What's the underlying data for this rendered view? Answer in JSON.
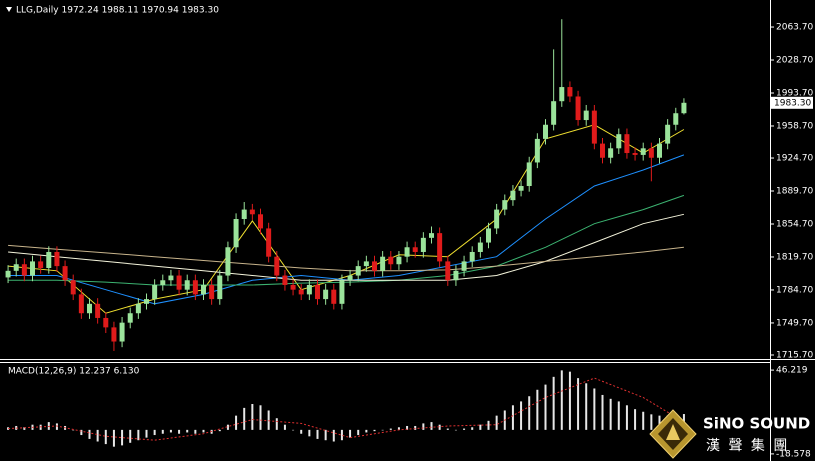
{
  "chart_data": [
    {
      "type": "candlestick",
      "title": "LLG,Daily  1972.24 1988.11 1970.94 1983.30",
      "up_color": "#9be39b",
      "down_color": "#e01b1b",
      "open": [
        1798,
        1805,
        1812,
        1800,
        1815,
        1808,
        1825,
        1810,
        1795,
        1780,
        1760,
        1770,
        1755,
        1745,
        1730,
        1750,
        1760,
        1770,
        1775,
        1790,
        1795,
        1800,
        1785,
        1795,
        1780,
        1790,
        1775,
        1800,
        1830,
        1860,
        1870,
        1865,
        1850,
        1820,
        1800,
        1790,
        1785,
        1780,
        1790,
        1775,
        1785,
        1770,
        1795,
        1800,
        1810,
        1815,
        1805,
        1820,
        1812,
        1820,
        1830,
        1825,
        1840,
        1845,
        1815,
        1795,
        1805,
        1815,
        1825,
        1835,
        1850,
        1870,
        1880,
        1890,
        1895,
        1920,
        1945,
        1960,
        1985,
        2000,
        1990,
        1965,
        1975,
        1940,
        1925,
        1935,
        1950,
        1930,
        1928,
        1935,
        1925,
        1940,
        1960,
        1972.24
      ],
      "high": [
        1811,
        1818,
        1818,
        1821,
        1821,
        1831,
        1831,
        1816,
        1801,
        1786,
        1776,
        1776,
        1761,
        1751,
        1756,
        1766,
        1776,
        1781,
        1796,
        1801,
        1806,
        1806,
        1801,
        1801,
        1796,
        1796,
        1806,
        1836,
        1866,
        1878,
        1876,
        1871,
        1856,
        1826,
        1806,
        1796,
        1791,
        1796,
        1796,
        1791,
        1791,
        1801,
        1806,
        1816,
        1821,
        1821,
        1826,
        1826,
        1826,
        1836,
        1836,
        1846,
        1852,
        1851,
        1821,
        1811,
        1821,
        1831,
        1841,
        1856,
        1876,
        1886,
        1896,
        1901,
        1926,
        1951,
        1966,
        2040,
        2072,
        2006,
        1996,
        1981,
        1981,
        1946,
        1941,
        1956,
        1956,
        1936,
        1941,
        1941,
        1946,
        1966,
        1978,
        1988.11
      ],
      "low": [
        1792,
        1799,
        1794,
        1794,
        1802,
        1802,
        1804,
        1789,
        1774,
        1754,
        1754,
        1749,
        1739,
        1720,
        1724,
        1744,
        1754,
        1764,
        1769,
        1784,
        1789,
        1779,
        1779,
        1774,
        1774,
        1769,
        1769,
        1794,
        1824,
        1854,
        1859,
        1844,
        1814,
        1794,
        1784,
        1779,
        1774,
        1774,
        1769,
        1769,
        1764,
        1764,
        1789,
        1794,
        1804,
        1799,
        1799,
        1806,
        1806,
        1814,
        1819,
        1819,
        1834,
        1809,
        1789,
        1789,
        1799,
        1809,
        1819,
        1829,
        1844,
        1864,
        1874,
        1884,
        1889,
        1914,
        1939,
        1954,
        1979,
        1984,
        1959,
        1959,
        1934,
        1919,
        1919,
        1929,
        1924,
        1922,
        1922,
        1900,
        1919,
        1934,
        1954,
        1970.94
      ],
      "close": [
        1805,
        1812,
        1800,
        1815,
        1808,
        1825,
        1810,
        1795,
        1780,
        1760,
        1770,
        1755,
        1745,
        1730,
        1750,
        1760,
        1770,
        1775,
        1790,
        1795,
        1800,
        1785,
        1795,
        1780,
        1790,
        1775,
        1800,
        1830,
        1860,
        1870,
        1865,
        1850,
        1820,
        1800,
        1790,
        1785,
        1780,
        1790,
        1775,
        1785,
        1770,
        1795,
        1800,
        1810,
        1815,
        1805,
        1820,
        1812,
        1820,
        1830,
        1825,
        1840,
        1845,
        1815,
        1795,
        1805,
        1815,
        1825,
        1835,
        1850,
        1870,
        1880,
        1890,
        1895,
        1920,
        1945,
        1960,
        1985,
        2000,
        1990,
        1965,
        1975,
        1940,
        1925,
        1935,
        1950,
        1930,
        1928,
        1935,
        1925,
        1940,
        1960,
        1972.24,
        1983.3
      ],
      "series": [
        {
          "color": "#f0e030",
          "x": [
            0,
            6,
            12,
            18,
            24,
            30,
            36,
            42,
            48,
            54,
            60,
            66,
            72,
            78,
            83
          ],
          "values": [
            1810,
            1805,
            1760,
            1775,
            1785,
            1858,
            1785,
            1800,
            1822,
            1820,
            1860,
            1945,
            1960,
            1930,
            1955
          ]
        },
        {
          "color": "#1e90ff",
          "x": [
            0,
            6,
            12,
            18,
            24,
            30,
            36,
            42,
            48,
            54,
            60,
            66,
            72,
            78,
            83
          ],
          "values": [
            1800,
            1800,
            1785,
            1770,
            1780,
            1795,
            1800,
            1795,
            1800,
            1810,
            1820,
            1860,
            1895,
            1912,
            1928
          ]
        },
        {
          "color": "#3cb371",
          "x": [
            0,
            6,
            12,
            18,
            24,
            30,
            36,
            42,
            48,
            54,
            60,
            66,
            72,
            78,
            83
          ],
          "values": [
            1795,
            1795,
            1793,
            1790,
            1790,
            1790,
            1792,
            1793,
            1795,
            1800,
            1810,
            1830,
            1855,
            1870,
            1885
          ]
        },
        {
          "color": "#f5f5dc",
          "x": [
            0,
            6,
            12,
            18,
            24,
            30,
            36,
            42,
            48,
            54,
            60,
            66,
            72,
            78,
            83
          ],
          "values": [
            1825,
            1820,
            1815,
            1810,
            1805,
            1800,
            1795,
            1795,
            1795,
            1795,
            1800,
            1815,
            1835,
            1855,
            1865
          ]
        },
        {
          "color": "#c8b48c",
          "x": [
            0,
            6,
            12,
            18,
            24,
            30,
            36,
            42,
            48,
            54,
            60,
            66,
            72,
            78,
            83
          ],
          "values": [
            1832,
            1828,
            1824,
            1820,
            1816,
            1812,
            1808,
            1805,
            1805,
            1806,
            1810,
            1815,
            1820,
            1825,
            1830
          ]
        }
      ],
      "price_marker": {
        "value": 1983.3,
        "label": "1983.30"
      },
      "ylim": [
        1712.5,
        2089.2
      ],
      "yticks": [
        {
          "value": 1715.7,
          "label": "1715.70"
        },
        {
          "value": 1749.7,
          "label": "1749.70"
        },
        {
          "value": 1784.7,
          "label": "1784.70"
        },
        {
          "value": 1819.7,
          "label": "1819.70"
        },
        {
          "value": 1854.7,
          "label": "1854.70"
        },
        {
          "value": 1889.7,
          "label": "1889.70"
        },
        {
          "value": 1924.7,
          "label": "1924.70"
        },
        {
          "value": 1958.7,
          "label": "1958.70"
        },
        {
          "value": 1993.7,
          "label": "1993.70"
        },
        {
          "value": 2028.7,
          "label": "2028.70"
        },
        {
          "value": 2063.7,
          "label": "2063.70"
        }
      ]
    },
    {
      "type": "macd",
      "title": "MACD(12,26,9) 12.237 6.130",
      "color": "#e8e8e8",
      "values": [
        2,
        3,
        2,
        4,
        4,
        6,
        5,
        3,
        0,
        -4,
        -7,
        -9,
        -11,
        -13,
        -12,
        -10,
        -8,
        -6,
        -4,
        -3,
        -2,
        -3,
        -2,
        -3,
        -2,
        -3,
        -1,
        4,
        11,
        17,
        20,
        19,
        15,
        9,
        4,
        0,
        -3,
        -5,
        -7,
        -8,
        -9,
        -8,
        -6,
        -4,
        -2,
        -1,
        0,
        1,
        2,
        3,
        3,
        5,
        6,
        4,
        1,
        0,
        1,
        2,
        4,
        7,
        11,
        15,
        19,
        22,
        26,
        31,
        35,
        41,
        46,
        45,
        40,
        36,
        32,
        27,
        24,
        22,
        19,
        16,
        14,
        12,
        11,
        11,
        12,
        12.237
      ],
      "signal": {
        "color": "#e03030",
        "x": [
          0,
          6,
          12,
          18,
          24,
          30,
          36,
          42,
          48,
          54,
          60,
          66,
          72,
          78,
          83
        ],
        "values": [
          1,
          3,
          -5,
          -8,
          -3,
          8,
          5,
          -6,
          0,
          3,
          4,
          25,
          40,
          25,
          6.13
        ]
      },
      "ylim": [
        -23.3,
        51.7
      ],
      "yticks": [
        46.219,
        -18.578
      ]
    }
  ],
  "logo": {
    "name": "SiNO SOUND",
    "subtitle": "漢 聲 集 團"
  }
}
